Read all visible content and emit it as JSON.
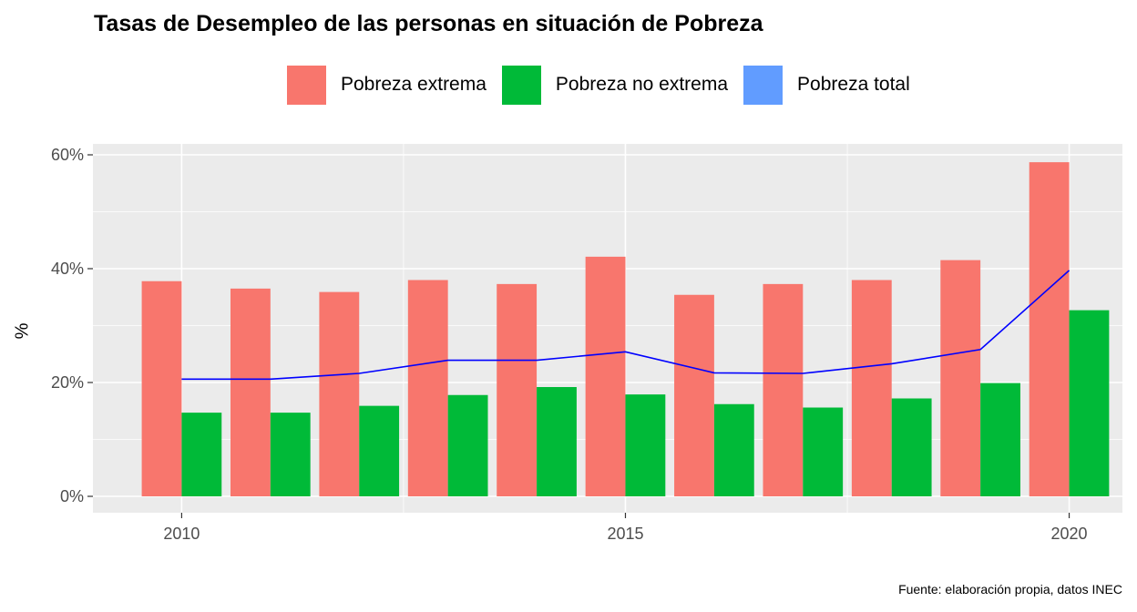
{
  "chart_data": {
    "type": "bar",
    "title": "Tasas de Desempleo de las personas en situación de Pobreza",
    "caption": "Fuente: elaboración propia, datos INEC",
    "xlabel": "",
    "ylabel": "%",
    "x": [
      2010,
      2011,
      2012,
      2013,
      2014,
      2015,
      2016,
      2017,
      2018,
      2019,
      2020
    ],
    "x_ticks": [
      "2010",
      "2015",
      "2020"
    ],
    "y_ticks": [
      "0%",
      "20%",
      "40%",
      "60%"
    ],
    "ylim": [
      0,
      60
    ],
    "grid": true,
    "legend_position": "top",
    "series": [
      {
        "name": "Pobreza extrema",
        "kind": "bar",
        "color": "#F8766D",
        "values": [
          37.8,
          36.5,
          35.9,
          38.0,
          37.3,
          42.1,
          35.4,
          37.3,
          38.0,
          41.5,
          58.7
        ]
      },
      {
        "name": "Pobreza no extrema",
        "kind": "bar",
        "color": "#00BA38",
        "values": [
          14.7,
          14.7,
          15.9,
          17.8,
          19.2,
          17.9,
          16.2,
          15.6,
          17.2,
          19.9,
          32.7
        ]
      },
      {
        "name": "Pobreza total",
        "kind": "line",
        "color": "#0000FF",
        "legend_color": "#619CFF",
        "values": [
          20.6,
          20.6,
          21.6,
          23.9,
          23.9,
          25.4,
          21.7,
          21.6,
          23.3,
          25.8,
          39.7
        ]
      }
    ]
  }
}
